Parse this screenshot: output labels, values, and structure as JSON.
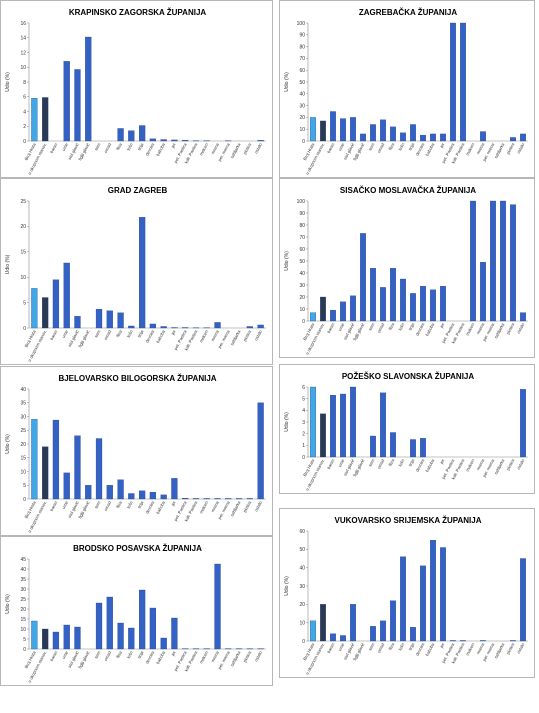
{
  "ylabel": "Udio (%)",
  "categories": [
    "Broj Hrata",
    "u ukupnom stanov.",
    "baran",
    "ume",
    "stol glavić",
    "figlji glavić",
    "sem",
    "omad",
    "fliza",
    "lušn",
    "tinja",
    "devnira",
    "baboba",
    "jer",
    "pet. Pastica",
    "kali. Pastica",
    "malcen",
    "mrena",
    "pet. mrena",
    "sabljarka",
    "plotica",
    "ostalo"
  ],
  "colors": {
    "first": "#41a8e8",
    "second": "#2b3a52",
    "main": "#3461c4",
    "border": "#b7b7b7"
  },
  "charts": [
    {
      "title": "KRAPINSKO ZAGORSKA ŽUPANIJA",
      "ymax": 16,
      "step": 2,
      "values": [
        5.8,
        5.9,
        0,
        10.8,
        9.7,
        14.1,
        0,
        0,
        1.7,
        1.4,
        2.1,
        0.3,
        0.2,
        0.15,
        0.1,
        0.05,
        0.05,
        0,
        0.05,
        0,
        0,
        0.1
      ]
    },
    {
      "title": "ZAGREBAČKA ŽUPANIJA",
      "ymax": 100,
      "step": 10,
      "values": [
        20,
        17,
        25,
        19,
        20,
        6,
        14,
        18,
        12,
        7,
        14,
        5,
        6,
        6,
        100,
        100,
        0,
        8,
        0,
        0,
        3,
        6
      ]
    },
    {
      "title": "GRAD ZAGREB",
      "ymax": 25,
      "step": 5,
      "values": [
        7.8,
        6,
        9.5,
        12.8,
        2.3,
        0,
        3.7,
        3.4,
        3,
        0.4,
        21.8,
        0.8,
        0.3,
        0.1,
        0.1,
        0.05,
        0.05,
        1.1,
        0,
        0,
        0.3,
        0.6
      ]
    },
    {
      "title": "SISAČKO MOSLAVAČKA ŽUPANIJA",
      "ymax": 100,
      "step": 10,
      "values": [
        7,
        20,
        9,
        16,
        21,
        73,
        44,
        28,
        44,
        35,
        23,
        29,
        26,
        29,
        0,
        0,
        100,
        49,
        100,
        100,
        97,
        7
      ]
    },
    {
      "title": "BJELOVARSKO BILOGORSKA ŽUPANIJA",
      "ymax": 40,
      "step": 5,
      "values": [
        29,
        19,
        28.7,
        9.5,
        23,
        5,
        22,
        5,
        7,
        2,
        3,
        2.5,
        1.5,
        7.5,
        0.3,
        0.2,
        0.2,
        0.2,
        0.2,
        0.2,
        0.2,
        35
      ]
    },
    {
      "title": "POŽEŠKO SLAVONSKA ŽUPANIJA",
      "ymax": 6,
      "step": 1,
      "values": [
        6,
        3.7,
        5.3,
        5.4,
        6,
        0,
        1.8,
        5.5,
        2.1,
        0,
        1.5,
        1.6,
        0,
        0,
        0,
        0,
        0,
        0,
        0,
        0,
        0,
        5.8
      ]
    },
    {
      "title": "BRODSKO POSAVSKA ŽUPANIJA",
      "ymax": 45,
      "step": 5,
      "values": [
        14,
        10,
        8.5,
        12,
        11,
        0,
        23,
        26,
        13,
        10.5,
        29.5,
        20.5,
        5.5,
        15.5,
        0.2,
        0.2,
        0.2,
        42.5,
        0.2,
        0.2,
        0.2,
        0.2
      ]
    },
    {
      "title": "VUKOVARSKO SRIJEMSKA ŽUPANIJA",
      "ymax": 60,
      "step": 10,
      "values": [
        11,
        20,
        4,
        3,
        20,
        0,
        8,
        11,
        22,
        46,
        7.5,
        41,
        55,
        51,
        0.3,
        0.3,
        0,
        0.3,
        0,
        0,
        0.3,
        45
      ]
    }
  ]
}
